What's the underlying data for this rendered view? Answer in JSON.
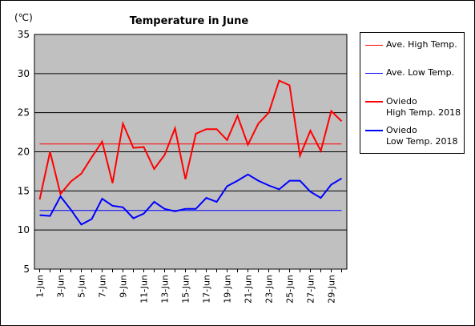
{
  "chart_data": {
    "type": "line",
    "title": "Temperature in June",
    "unit_label": "(℃)",
    "ylim": [
      5,
      35
    ],
    "yticks": [
      5,
      10,
      15,
      20,
      25,
      30,
      35
    ],
    "x": [
      "1-Jun",
      "2-Jun",
      "3-Jun",
      "4-Jun",
      "5-Jun",
      "6-Jun",
      "7-Jun",
      "8-Jun",
      "9-Jun",
      "10-Jun",
      "11-Jun",
      "12-Jun",
      "13-Jun",
      "14-Jun",
      "15-Jun",
      "16-Jun",
      "17-Jun",
      "18-Jun",
      "19-Jun",
      "20-Jun",
      "21-Jun",
      "22-Jun",
      "23-Jun",
      "24-Jun",
      "25-Jun",
      "26-Jun",
      "27-Jun",
      "28-Jun",
      "29-Jun",
      "30-Jun"
    ],
    "xticklabels": [
      "1-Jun",
      "3-Jun",
      "5-Jun",
      "7-Jun",
      "9-Jun",
      "11-Jun",
      "13-Jun",
      "15-Jun",
      "17-Jun",
      "19-Jun",
      "21-Jun",
      "23-Jun",
      "25-Jun",
      "27-Jun",
      "29-Jun"
    ],
    "grid": true,
    "legend_position": "right",
    "plot_background": "#c0c0c0",
    "series": [
      {
        "name": "Ave. High Temp.",
        "color": "#ff0000",
        "width": 1,
        "values": [
          21,
          21,
          21,
          21,
          21,
          21,
          21,
          21,
          21,
          21,
          21,
          21,
          21,
          21,
          21,
          21,
          21,
          21,
          21,
          21,
          21,
          21,
          21,
          21,
          21,
          21,
          21,
          21,
          21,
          21
        ]
      },
      {
        "name": "Ave. Low Temp.",
        "color": "#0000ff",
        "width": 1,
        "values": [
          12.5,
          12.5,
          12.5,
          12.5,
          12.5,
          12.5,
          12.5,
          12.5,
          12.5,
          12.5,
          12.5,
          12.5,
          12.5,
          12.5,
          12.5,
          12.5,
          12.5,
          12.5,
          12.5,
          12.5,
          12.5,
          12.5,
          12.5,
          12.5,
          12.5,
          12.5,
          12.5,
          12.5,
          12.5,
          12.5
        ]
      },
      {
        "name": "Oviedo High Temp. 2018",
        "name_lines": [
          "Oviedo",
          "High Temp. 2018"
        ],
        "color": "#ff0000",
        "width": 2,
        "values": [
          13.9,
          20.0,
          14.6,
          16.2,
          17.2,
          19.3,
          21.3,
          16.0,
          23.6,
          20.5,
          20.6,
          17.8,
          19.6,
          23.0,
          16.5,
          22.3,
          22.9,
          22.9,
          21.5,
          24.6,
          20.9,
          23.6,
          25.0,
          29.1,
          28.5,
          19.5,
          22.7,
          20.1,
          25.2,
          23.9
        ]
      },
      {
        "name": "Oviedo Low Temp. 2018",
        "name_lines": [
          "Oviedo",
          "Low Temp. 2018"
        ],
        "color": "#0000ff",
        "width": 2,
        "values": [
          11.9,
          11.8,
          14.3,
          12.6,
          10.7,
          11.4,
          14.0,
          13.1,
          12.9,
          11.5,
          12.1,
          13.6,
          12.7,
          12.4,
          12.7,
          12.7,
          14.1,
          13.6,
          15.6,
          16.3,
          17.1,
          16.3,
          15.7,
          15.2,
          16.3,
          16.3,
          14.9,
          14.1,
          15.8,
          16.6
        ]
      }
    ]
  }
}
